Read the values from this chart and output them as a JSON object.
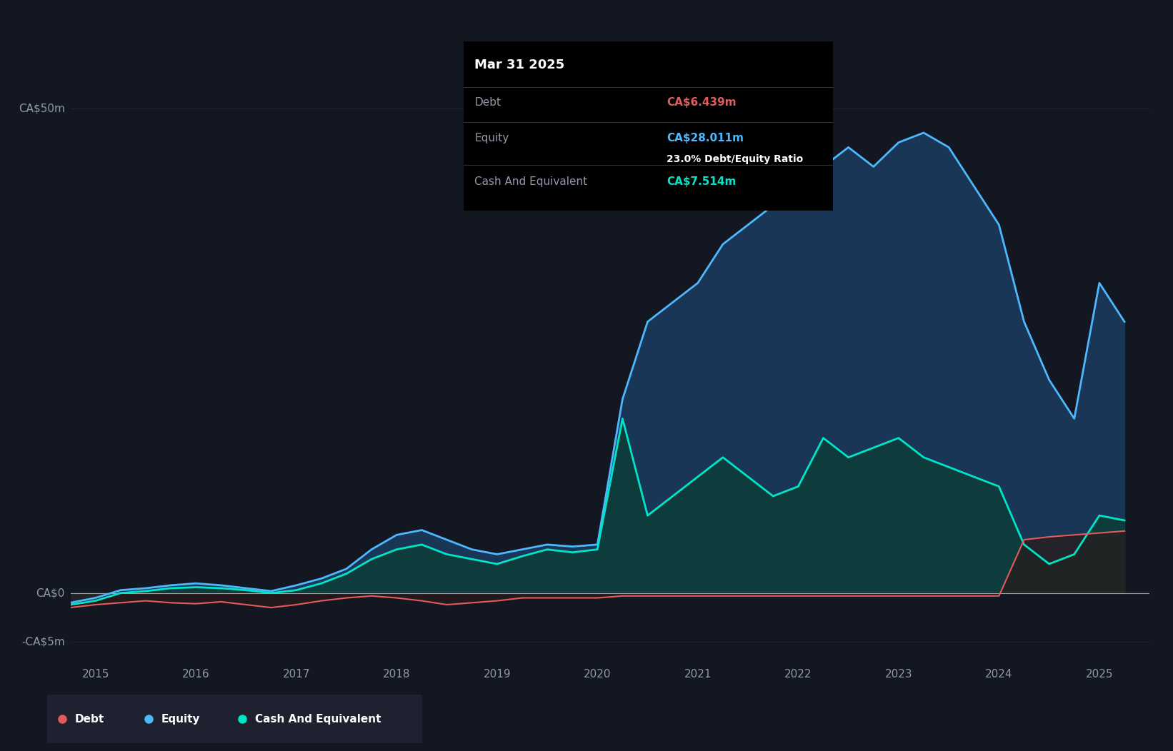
{
  "background_color": "#131722",
  "plot_bg_color": "#131722",
  "ylabel_50": "CA$50m",
  "ylabel_0": "CA$0",
  "ylabel_neg5": "-CA$5m",
  "xlim": [
    2014.75,
    2025.5
  ],
  "ylim": [
    -7,
    55
  ],
  "tooltip": {
    "date": "Mar 31 2025",
    "debt_label": "Debt",
    "debt_value": "CA$6.439m",
    "equity_label": "Equity",
    "equity_value": "CA$28.011m",
    "ratio_text": "23.0% Debt/Equity Ratio",
    "cash_label": "Cash And Equivalent",
    "cash_value": "CA$7.514m"
  },
  "debt_color": "#e05c5c",
  "equity_color": "#4db8ff",
  "cash_color": "#00e5c8",
  "equity_fill_color": "#1a3a5c",
  "cash_fill_color": "#0d3d3a",
  "debt_fill_color": "#2a1a1a",
  "grid_color": "#2a2e3d",
  "axis_label_color": "#9198aa",
  "legend_bg": "#1e2230",
  "separator_color": "#333333",
  "years": [
    2014.75,
    2015.0,
    2015.25,
    2015.5,
    2015.75,
    2016.0,
    2016.25,
    2016.5,
    2016.75,
    2017.0,
    2017.25,
    2017.5,
    2017.75,
    2018.0,
    2018.25,
    2018.5,
    2018.75,
    2019.0,
    2019.25,
    2019.5,
    2019.75,
    2020.0,
    2020.25,
    2020.5,
    2020.75,
    2021.0,
    2021.25,
    2021.5,
    2021.75,
    2022.0,
    2022.25,
    2022.5,
    2022.75,
    2023.0,
    2023.25,
    2023.5,
    2023.75,
    2024.0,
    2024.25,
    2024.5,
    2024.75,
    2025.0,
    2025.25
  ],
  "debt": [
    -1.5,
    -1.2,
    -1.0,
    -0.8,
    -1.0,
    -1.1,
    -0.9,
    -1.2,
    -1.5,
    -1.2,
    -0.8,
    -0.5,
    -0.3,
    -0.5,
    -0.8,
    -1.2,
    -1.0,
    -0.8,
    -0.5,
    -0.5,
    -0.5,
    -0.5,
    -0.3,
    -0.3,
    -0.3,
    -0.3,
    -0.3,
    -0.3,
    -0.3,
    -0.3,
    -0.3,
    -0.3,
    -0.3,
    -0.3,
    -0.3,
    -0.3,
    -0.3,
    -0.3,
    5.5,
    5.8,
    6.0,
    6.2,
    6.4
  ],
  "equity": [
    -1.0,
    -0.5,
    0.3,
    0.5,
    0.8,
    1.0,
    0.8,
    0.5,
    0.2,
    0.8,
    1.5,
    2.5,
    4.5,
    6.0,
    6.5,
    5.5,
    4.5,
    4.0,
    4.5,
    5.0,
    4.8,
    5.0,
    20.0,
    28.0,
    30.0,
    32.0,
    36.0,
    38.0,
    40.0,
    42.0,
    44.0,
    46.0,
    44.0,
    46.5,
    47.5,
    46.0,
    42.0,
    38.0,
    28.0,
    22.0,
    18.0,
    32.0,
    28.0
  ],
  "cash": [
    -1.2,
    -0.8,
    0.0,
    0.2,
    0.5,
    0.6,
    0.5,
    0.3,
    0.0,
    0.3,
    1.0,
    2.0,
    3.5,
    4.5,
    5.0,
    4.0,
    3.5,
    3.0,
    3.8,
    4.5,
    4.2,
    4.5,
    18.0,
    8.0,
    10.0,
    12.0,
    14.0,
    12.0,
    10.0,
    11.0,
    16.0,
    14.0,
    15.0,
    16.0,
    14.0,
    13.0,
    12.0,
    11.0,
    5.0,
    3.0,
    4.0,
    8.0,
    7.5
  ],
  "x_ticks": [
    2015,
    2016,
    2017,
    2018,
    2019,
    2020,
    2021,
    2022,
    2023,
    2024,
    2025
  ],
  "x_tick_labels": [
    "2015",
    "2016",
    "2017",
    "2018",
    "2019",
    "2020",
    "2021",
    "2022",
    "2023",
    "2024",
    "2025"
  ]
}
